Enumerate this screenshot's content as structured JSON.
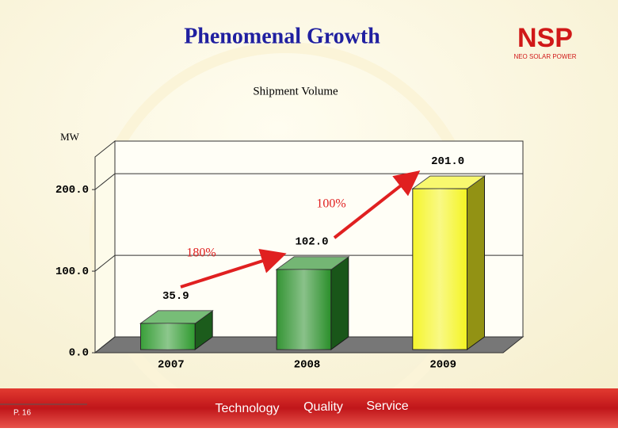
{
  "header": {
    "title": "Phenomenal Growth",
    "logo": "NSP",
    "logo_subtitle": "NEO SOLAR POWER"
  },
  "chart_data": {
    "type": "bar",
    "title": "Shipment Volume",
    "y_label": "MW",
    "categories": [
      "2007",
      "2008",
      "2009"
    ],
    "values": [
      35.9,
      102.0,
      201.0
    ],
    "value_labels": [
      "35.9",
      "102.0",
      "201.0"
    ],
    "colors": [
      "#2f9a2f",
      "#2a8f2a",
      "#f4f422"
    ],
    "ylim": [
      0,
      240
    ],
    "yticks": [
      {
        "value": 0,
        "label": "0.0"
      },
      {
        "value": 100,
        "label": "100.0"
      },
      {
        "value": 200,
        "label": "200.0"
      }
    ],
    "grid": true,
    "annotations": [
      "180%",
      "100%"
    ]
  },
  "footer": {
    "page": "P. 16",
    "slogans": [
      "Technology",
      "Quality",
      "Service"
    ]
  }
}
